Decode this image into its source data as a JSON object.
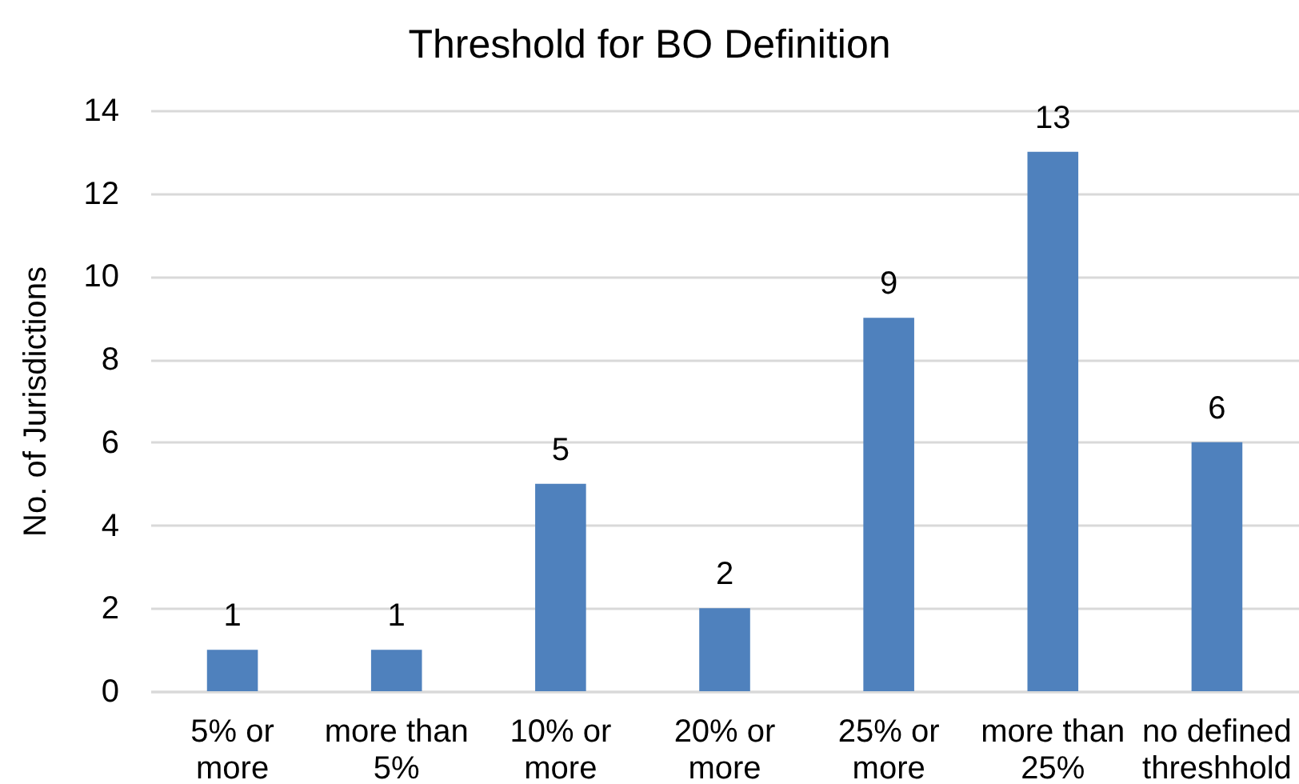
{
  "chart_data": {
    "type": "bar",
    "title": "Threshold for BO Definition",
    "ylabel": "No. of Jurisdictions",
    "categories": [
      "5% or more",
      "more than 5%",
      "10% or more",
      "20% or more",
      "25% or more",
      "more than 25%",
      "no defined threshhold"
    ],
    "values": [
      1,
      1,
      5,
      2,
      9,
      13,
      6
    ],
    "color": "#4f81bd",
    "ylim": [
      0,
      14
    ],
    "yticks": [
      0,
      2,
      4,
      6,
      8,
      10,
      12,
      14
    ],
    "grid": "y",
    "data_labels": true
  }
}
